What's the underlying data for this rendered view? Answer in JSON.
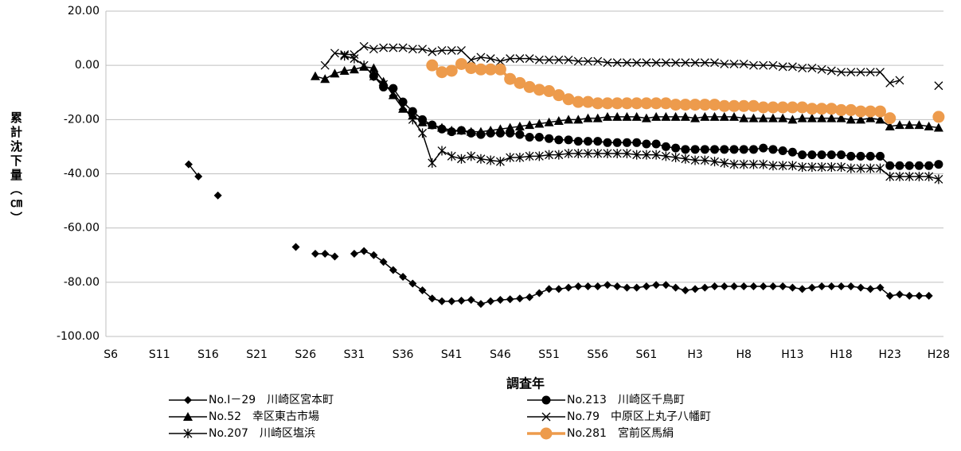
{
  "chart_data": {
    "type": "line",
    "x_label": "調査年",
    "y_label": "累計沈下量（㎝）",
    "categories": [
      "S6",
      null,
      null,
      null,
      null,
      "S11",
      null,
      null,
      null,
      null,
      "S16",
      null,
      null,
      null,
      null,
      "S21",
      null,
      null,
      null,
      null,
      "S26",
      null,
      null,
      null,
      null,
      "S31",
      null,
      null,
      null,
      null,
      "S36",
      null,
      null,
      null,
      null,
      "S41",
      null,
      null,
      null,
      null,
      "S46",
      null,
      null,
      null,
      null,
      "S51",
      null,
      null,
      null,
      null,
      "S56",
      null,
      null,
      null,
      null,
      "S61",
      null,
      null,
      null,
      null,
      "H3",
      null,
      null,
      null,
      null,
      "H8",
      null,
      null,
      null,
      null,
      "H13",
      null,
      null,
      null,
      null,
      "H18",
      null,
      null,
      null,
      null,
      "H23",
      null,
      null,
      null,
      null,
      "H28"
    ],
    "ylim": [
      -100,
      20
    ],
    "yticks": [
      {
        "value": -100,
        "label": "-100.00"
      },
      {
        "value": -80,
        "label": "-80.00"
      },
      {
        "value": -60,
        "label": "-60.00"
      },
      {
        "value": -40,
        "label": "-40.00"
      },
      {
        "value": -20,
        "label": "-20.00"
      },
      {
        "value": 0,
        "label": "0.00"
      },
      {
        "value": 20,
        "label": "20.00"
      }
    ],
    "grid": true,
    "series": [
      {
        "name": "No.Ⅰ－29　川崎区宮本町",
        "color": "#000000",
        "marker": "diamond",
        "values": [
          null,
          null,
          null,
          null,
          null,
          null,
          null,
          null,
          -36.5,
          -41,
          null,
          -48,
          null,
          null,
          null,
          null,
          null,
          null,
          null,
          -67,
          null,
          -69.5,
          -69.5,
          -70.5,
          null,
          -69.5,
          -68.5,
          -70,
          -72.5,
          -75.5,
          -78,
          -80.5,
          -83,
          -86,
          -87,
          -87,
          -86.8,
          -86.5,
          -88,
          -87,
          -86.5,
          -86.3,
          -86,
          -85.5,
          -84,
          -82.5,
          -82.5,
          -82,
          -81.5,
          -81.5,
          -81.5,
          -81,
          -81.5,
          -82,
          -82,
          -81.5,
          -81,
          -81,
          -82,
          -83,
          -82.5,
          -82,
          -81.5,
          -81.5,
          -81.5,
          -81.5,
          -81.5,
          -81.5,
          -81.5,
          -81.5,
          -82,
          -82.5,
          -82,
          -81.5,
          -81.5,
          -81.5,
          -81.5,
          -82,
          -82.5,
          -82,
          -85,
          -84.5,
          -85,
          -85,
          -85,
          null
        ]
      },
      {
        "name": "No.213　川崎区千鳥町",
        "color": "#000000",
        "marker": "circle",
        "values": [
          null,
          null,
          null,
          null,
          null,
          null,
          null,
          null,
          null,
          null,
          null,
          null,
          null,
          null,
          null,
          null,
          null,
          null,
          null,
          null,
          null,
          null,
          null,
          null,
          null,
          null,
          null,
          -4,
          -8,
          -8.5,
          -13.5,
          -17,
          -20,
          -22,
          -23.5,
          -24.5,
          -24,
          -25,
          -25.5,
          -25,
          -25,
          -25,
          -25.5,
          -26.5,
          -26.5,
          -27,
          -27.5,
          -27.5,
          -28,
          -28,
          -28,
          -28.5,
          -28.5,
          -28.5,
          -28.5,
          -29,
          -29,
          -30,
          -30.5,
          -31,
          -31,
          -31,
          -31,
          -31,
          -31,
          -31,
          -31,
          -30.5,
          -31,
          -31.5,
          -32,
          -33,
          -33,
          -33,
          -33,
          -33,
          -33.5,
          -33.5,
          -33.5,
          -33.5,
          -37,
          -37,
          -37,
          -37,
          -37,
          -36.5
        ]
      },
      {
        "name": "No.52　幸区東古市場",
        "color": "#000000",
        "marker": "triangle",
        "values": [
          null,
          null,
          null,
          null,
          null,
          null,
          null,
          null,
          null,
          null,
          null,
          null,
          null,
          null,
          null,
          null,
          null,
          null,
          null,
          null,
          null,
          -4,
          -5,
          -3,
          -2,
          -1.5,
          -0.5,
          -1,
          -6,
          -11,
          -16,
          -18.5,
          -21,
          -22,
          -23,
          -24,
          -24,
          -24.5,
          -24.5,
          -24,
          -23.5,
          -23,
          -22.5,
          -22,
          -21.5,
          -21,
          -20.5,
          -20,
          -20,
          -19.5,
          -19.5,
          -19,
          -19,
          -19,
          -19,
          -19.5,
          -19,
          -19,
          -19,
          -19,
          -19.5,
          -19,
          -19,
          -19,
          -19,
          -19.5,
          -19.5,
          -19.5,
          -19.5,
          -19.5,
          -20,
          -19.5,
          -19.5,
          -19.5,
          -19.5,
          -19.5,
          -20,
          -20,
          -19.5,
          -20,
          -22.5,
          -22,
          -22,
          -22,
          -22.5,
          -23
        ]
      },
      {
        "name": "No.79　中原区上丸子八幡町",
        "color": "#000000",
        "marker": "x",
        "values": [
          null,
          null,
          null,
          null,
          null,
          null,
          null,
          null,
          null,
          null,
          null,
          null,
          null,
          null,
          null,
          null,
          null,
          null,
          null,
          null,
          null,
          null,
          0,
          4.5,
          4,
          4,
          7,
          6,
          6.5,
          6.5,
          6.5,
          6,
          6,
          5,
          5.5,
          5.5,
          5.5,
          2,
          3,
          2.5,
          1.5,
          2.5,
          2.5,
          2.5,
          2,
          2,
          2,
          2,
          1.5,
          1.5,
          1.5,
          1,
          1,
          1,
          1,
          1,
          1,
          1,
          1,
          1,
          1,
          1,
          1,
          0.5,
          0.5,
          0.5,
          0,
          0,
          0,
          -0.5,
          -0.5,
          -1,
          -1,
          -1.5,
          -2,
          -2.5,
          -2.5,
          -2.5,
          -2.5,
          -2.5,
          -6.5,
          -5.5,
          null,
          null,
          null,
          -7.5
        ]
      },
      {
        "name": "No.207　川崎区塩浜",
        "color": "#000000",
        "marker": "asterisk",
        "values": [
          null,
          null,
          null,
          null,
          null,
          null,
          null,
          null,
          null,
          null,
          null,
          null,
          null,
          null,
          null,
          null,
          null,
          null,
          null,
          null,
          null,
          null,
          null,
          null,
          3.5,
          2.5,
          0,
          -4,
          -7,
          -10,
          -15,
          -20,
          -25,
          -36,
          -31.5,
          -33.5,
          -34.5,
          -33.5,
          -34.5,
          -35,
          -35.5,
          -34,
          -34,
          -33.5,
          -33.5,
          -33,
          -33,
          -32.5,
          -32.5,
          -32.5,
          -32.5,
          -32.5,
          -32.5,
          -32.5,
          -33,
          -33,
          -33,
          -33.5,
          -34,
          -34.5,
          -35,
          -35,
          -35.5,
          -36,
          -36.5,
          -36.5,
          -36.5,
          -36.5,
          -37,
          -37,
          -37,
          -37.5,
          -37.5,
          -37.5,
          -37.5,
          -37.5,
          -38,
          -38,
          -38,
          -38,
          -41,
          -41,
          -41,
          -41,
          -41,
          -42
        ]
      },
      {
        "name": "No.281　宮前区馬絹",
        "color": "#ed9b4c",
        "marker": "big-circle",
        "values": [
          null,
          null,
          null,
          null,
          null,
          null,
          null,
          null,
          null,
          null,
          null,
          null,
          null,
          null,
          null,
          null,
          null,
          null,
          null,
          null,
          null,
          null,
          null,
          null,
          null,
          null,
          null,
          null,
          null,
          null,
          null,
          null,
          null,
          0,
          -2.5,
          -2,
          0.5,
          -1,
          -1.5,
          -1.5,
          -1.5,
          -5,
          -6.5,
          -8,
          -9,
          -9.5,
          -11,
          -12.5,
          -13.5,
          -13.5,
          -14,
          -14,
          -14,
          -14,
          -14,
          -14,
          -14,
          -14,
          -14.5,
          -14.5,
          -14.5,
          -14.5,
          -14.5,
          -15,
          -15,
          -15,
          -15,
          -15.5,
          -15.5,
          -15.5,
          -15.5,
          -15.5,
          -16,
          -16,
          -16,
          -16.5,
          -16.5,
          -17,
          -17,
          -17,
          -19.5,
          null,
          null,
          null,
          null,
          -19
        ]
      }
    ]
  }
}
